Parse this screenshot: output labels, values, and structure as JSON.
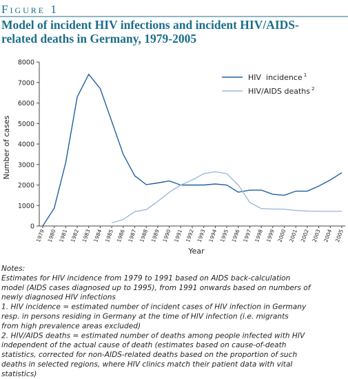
{
  "figure_label": "Figure 1",
  "chart_data": {
    "type": "line",
    "title_lines": [
      "Model of incident HIV infections and incident HIV/AIDS-",
      "related deaths in Germany, 1979-2005"
    ],
    "y_label": "Number of cases",
    "x_label": "Year",
    "categories": [
      "1979",
      "1980",
      "1981",
      "1982",
      "1983",
      "1984",
      "1985",
      "1986",
      "1987",
      "1988",
      "1989",
      "1990",
      "1991",
      "1992",
      "1993",
      "1994",
      "1995",
      "1996",
      "1997",
      "1998",
      "1999",
      "2000",
      "2001",
      "2002",
      "2003",
      "2004",
      "2005"
    ],
    "series": [
      {
        "name": "HIV  incidence",
        "note": "1",
        "color": "#1f5f9f",
        "values": [
          0,
          870,
          3100,
          6300,
          7400,
          6700,
          5100,
          3500,
          2450,
          2020,
          2100,
          2200,
          2000,
          2000,
          2000,
          2050,
          2000,
          1650,
          1750,
          1750,
          1550,
          1500,
          1700,
          1700,
          1950,
          2250,
          2600
        ]
      },
      {
        "name": "HIV/AIDS deaths",
        "note": "2",
        "color": "#9bbadc",
        "values": [
          null,
          null,
          null,
          null,
          null,
          null,
          150,
          320,
          700,
          800,
          1200,
          1650,
          2000,
          2250,
          2550,
          2650,
          2550,
          2000,
          1150,
          850,
          830,
          820,
          760,
          730,
          720,
          720,
          720
        ]
      }
    ],
    "ylim": [
      0,
      8000
    ],
    "yticks": [
      0,
      1000,
      2000,
      3000,
      4000,
      5000,
      6000,
      7000,
      8000
    ]
  },
  "notes": [
    "Notes:",
    "Estimates for HIV incidence from 1979 to 1991 based on AIDS back-calculation",
    "model (AIDS cases diagnosed up to 1995), from 1991 onwards based on numbers of",
    "newly diagnosed HIV infections",
    "1. HIV incidence = estimated number of incident cases of HIV infection in Germany",
    "resp. in persons residing in Germany at the time of HIV infection (i.e. migrants",
    "from high prevalence areas excluded)",
    "2. HIV/AIDS deaths = estimated number of deaths among people infected with HIV",
    "independent of the actual cause of death (estimates based on cause-of-death",
    "statistics, corrected for non-AIDS-related deaths based on the proportion of such",
    "deaths in selected regions, where HIV clinics match their patient data with vital",
    "statistics)"
  ]
}
